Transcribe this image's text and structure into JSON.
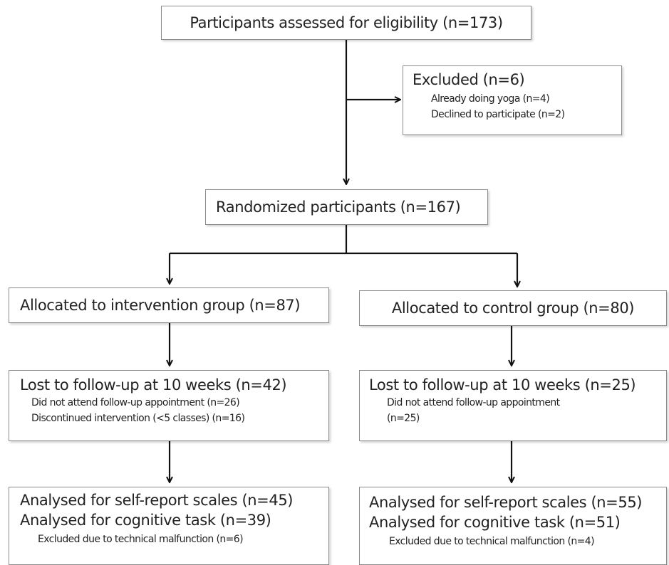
{
  "assessed": {
    "label": "Participants assessed for eligibility (n=173)"
  },
  "excluded": {
    "label": "Excluded (n=6)",
    "reasons": [
      "Already doing  yoga (n=4)",
      "Declined to participate (n=2)"
    ]
  },
  "randomized": {
    "label": "Randomized participants (n=167)"
  },
  "intervention": {
    "allocated": "Allocated to intervention group (n=87)",
    "lost": {
      "label": "Lost to follow-up at 10 weeks (n=42)",
      "reasons": [
        "Did not attend follow-up appointment (n=26)",
        "Discontinued intervention (<5 classes) (n=16)"
      ]
    },
    "analysed": {
      "self_report": "Analysed for self-report scales (n=45)",
      "cognitive": "Analysed for cognitive task (n=39)",
      "excluded": "Excluded due to technical malfunction (n=6)"
    }
  },
  "control": {
    "allocated": "Allocated to control group (n=80)",
    "lost": {
      "label": "Lost to follow-up at 10 weeks (n=25)",
      "reasons": [
        "Did not attend follow-up appointment",
        "(n=25)"
      ]
    },
    "analysed": {
      "self_report": "Analysed for self-report scales (n=55)",
      "cognitive": "Analysed for cognitive task (n=51)",
      "excluded": "Excluded due to technical malfunction (n=4)"
    }
  }
}
